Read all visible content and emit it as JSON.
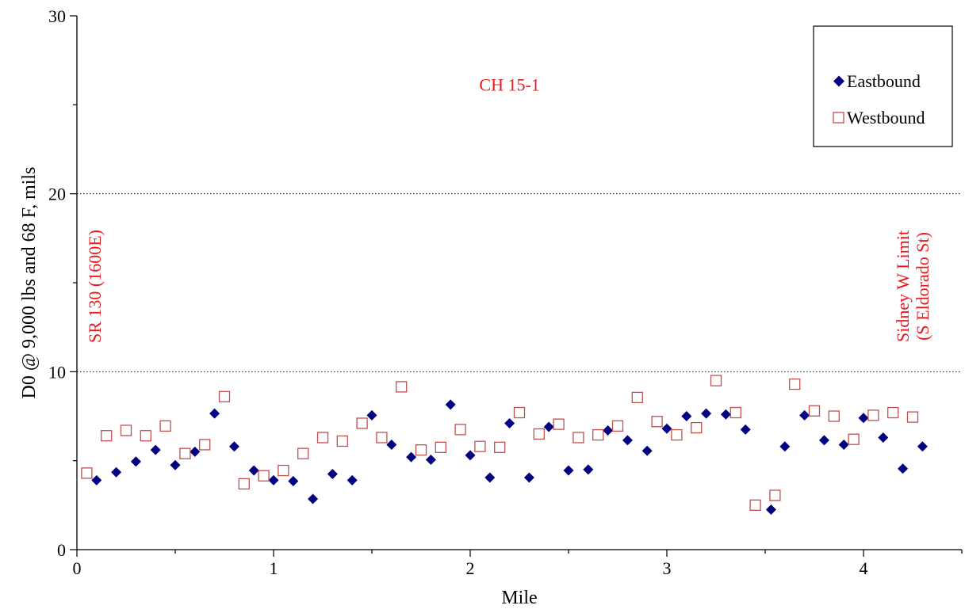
{
  "chart_data": {
    "type": "scatter",
    "xlabel": "Mile",
    "ylabel": "D0 @ 9,000 lbs and 68 F, mils",
    "xlim": [
      0,
      4.5
    ],
    "ylim": [
      0,
      30
    ],
    "x_ticks": [
      0,
      1,
      2,
      3,
      4
    ],
    "y_ticks": [
      0,
      10,
      20,
      30
    ],
    "grid": "horizontal dotted at 10 and 20",
    "legend_position": "top-right",
    "annotations": [
      {
        "text": "CH 15-1",
        "x": 2.2,
        "y": 25.8
      },
      {
        "text": "SR 130 (1600E)",
        "x": 0.12,
        "y": 14.8,
        "rotated": true
      },
      {
        "text": "Sidney W Limit",
        "x": 4.23,
        "y": 14.8,
        "rotated": true
      },
      {
        "text": "(S Eldorado St)",
        "x": 4.33,
        "y": 14.8,
        "rotated": true
      }
    ],
    "series": [
      {
        "name": "Eastbound",
        "marker": "diamond",
        "color": "#000080",
        "points": [
          [
            0.1,
            3.9
          ],
          [
            0.2,
            4.35
          ],
          [
            0.3,
            4.95
          ],
          [
            0.4,
            5.6
          ],
          [
            0.5,
            4.75
          ],
          [
            0.6,
            5.5
          ],
          [
            0.7,
            7.65
          ],
          [
            0.8,
            5.8
          ],
          [
            0.9,
            4.45
          ],
          [
            1.0,
            3.9
          ],
          [
            1.1,
            3.85
          ],
          [
            1.2,
            2.85
          ],
          [
            1.3,
            4.25
          ],
          [
            1.4,
            3.9
          ],
          [
            1.5,
            7.55
          ],
          [
            1.6,
            5.9
          ],
          [
            1.7,
            5.2
          ],
          [
            1.8,
            5.05
          ],
          [
            1.9,
            8.15
          ],
          [
            2.0,
            5.3
          ],
          [
            2.1,
            4.05
          ],
          [
            2.2,
            7.1
          ],
          [
            2.3,
            4.05
          ],
          [
            2.4,
            6.9
          ],
          [
            2.5,
            4.45
          ],
          [
            2.6,
            4.5
          ],
          [
            2.7,
            6.7
          ],
          [
            2.8,
            6.15
          ],
          [
            2.9,
            5.55
          ],
          [
            3.0,
            6.8
          ],
          [
            3.1,
            7.5
          ],
          [
            3.2,
            7.65
          ],
          [
            3.3,
            7.6
          ],
          [
            3.4,
            6.75
          ],
          [
            3.53,
            2.25
          ],
          [
            3.6,
            5.8
          ],
          [
            3.7,
            7.55
          ],
          [
            3.8,
            6.15
          ],
          [
            3.9,
            5.9
          ],
          [
            4.0,
            7.4
          ],
          [
            4.1,
            6.3
          ],
          [
            4.2,
            4.55
          ],
          [
            4.3,
            5.8
          ]
        ]
      },
      {
        "name": "Westbound",
        "marker": "square",
        "color": "#c0504d",
        "points": [
          [
            0.05,
            4.3
          ],
          [
            0.15,
            6.4
          ],
          [
            0.25,
            6.7
          ],
          [
            0.35,
            6.4
          ],
          [
            0.45,
            6.95
          ],
          [
            0.55,
            5.4
          ],
          [
            0.65,
            5.9
          ],
          [
            0.75,
            8.6
          ],
          [
            0.85,
            3.7
          ],
          [
            0.95,
            4.15
          ],
          [
            1.05,
            4.45
          ],
          [
            1.15,
            5.4
          ],
          [
            1.25,
            6.3
          ],
          [
            1.35,
            6.1
          ],
          [
            1.45,
            7.1
          ],
          [
            1.55,
            6.3
          ],
          [
            1.65,
            9.15
          ],
          [
            1.75,
            5.6
          ],
          [
            1.85,
            5.75
          ],
          [
            1.95,
            6.75
          ],
          [
            2.05,
            5.8
          ],
          [
            2.15,
            5.75
          ],
          [
            2.25,
            7.7
          ],
          [
            2.35,
            6.5
          ],
          [
            2.45,
            7.05
          ],
          [
            2.55,
            6.3
          ],
          [
            2.65,
            6.45
          ],
          [
            2.75,
            6.95
          ],
          [
            2.85,
            8.55
          ],
          [
            2.95,
            7.2
          ],
          [
            3.05,
            6.45
          ],
          [
            3.15,
            6.85
          ],
          [
            3.25,
            9.5
          ],
          [
            3.35,
            7.7
          ],
          [
            3.45,
            2.5
          ],
          [
            3.55,
            3.05
          ],
          [
            3.65,
            9.3
          ],
          [
            3.75,
            7.8
          ],
          [
            3.85,
            7.5
          ],
          [
            3.95,
            6.2
          ],
          [
            4.05,
            7.55
          ],
          [
            4.15,
            7.7
          ],
          [
            4.25,
            7.45
          ]
        ]
      }
    ]
  }
}
